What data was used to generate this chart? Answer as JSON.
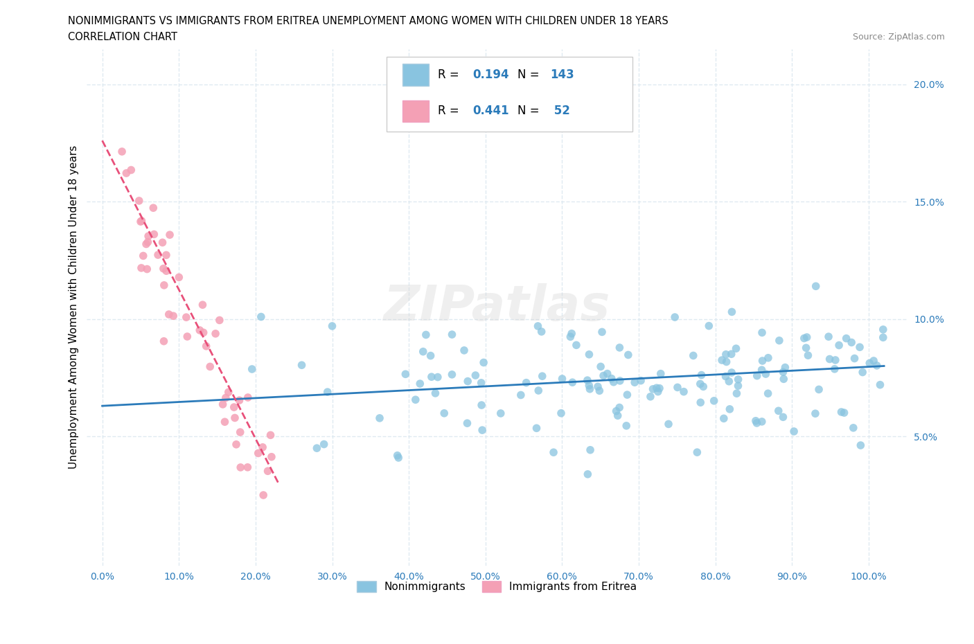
{
  "title_line1": "NONIMMIGRANTS VS IMMIGRANTS FROM ERITREA UNEMPLOYMENT AMONG WOMEN WITH CHILDREN UNDER 18 YEARS",
  "title_line2": "CORRELATION CHART",
  "source_text": "Source: ZipAtlas.com",
  "ylabel": "Unemployment Among Women with Children Under 18 years",
  "watermark": "ZIPatlas",
  "xlim": [
    -0.02,
    1.05
  ],
  "ylim": [
    -0.005,
    0.215
  ],
  "xtick_labels": [
    "0.0%",
    "10.0%",
    "20.0%",
    "30.0%",
    "40.0%",
    "50.0%",
    "60.0%",
    "70.0%",
    "80.0%",
    "90.0%",
    "100.0%"
  ],
  "xtick_values": [
    0.0,
    0.1,
    0.2,
    0.3,
    0.4,
    0.5,
    0.6,
    0.7,
    0.8,
    0.9,
    1.0
  ],
  "ytick_labels": [
    "5.0%",
    "10.0%",
    "15.0%",
    "20.0%"
  ],
  "ytick_values": [
    0.05,
    0.1,
    0.15,
    0.2
  ],
  "blue_color": "#89c4e0",
  "pink_color": "#f4a0b5",
  "blue_line_color": "#2b7bba",
  "pink_line_color": "#e8507a",
  "grid_color": "#dce8f0",
  "background_color": "#ffffff",
  "text_color_blue": "#2b7bba",
  "legend_R1": "0.194",
  "legend_N1": "143",
  "legend_R2": "0.441",
  "legend_N2": " 52",
  "nonimmigrant_label": "Nonimmigrants",
  "immigrant_label": "Immigrants from Eritrea",
  "blue_trend_x": [
    0.0,
    1.02
  ],
  "blue_trend_y": [
    0.063,
    0.08
  ],
  "pink_trend_x": [
    0.0,
    0.23
  ],
  "pink_trend_y": [
    0.176,
    0.03
  ]
}
